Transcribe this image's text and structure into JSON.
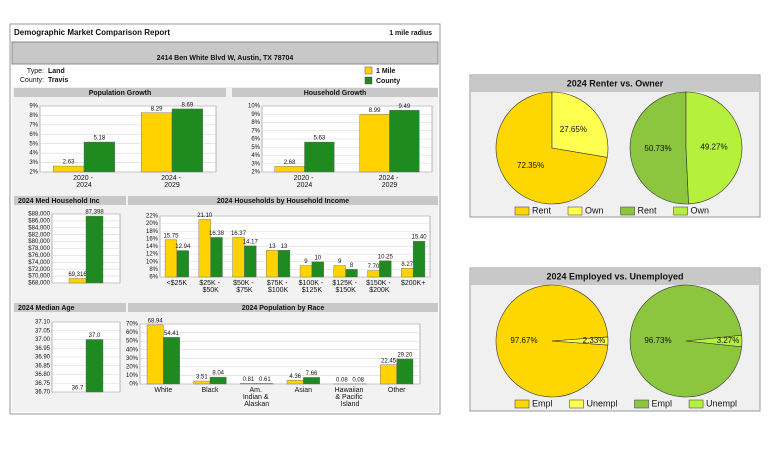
{
  "report": {
    "title": "Demographic Market Comparison Report",
    "radius": "1 mile radius",
    "address": "2414 Ben White Blvd W, Austin, TX 78704",
    "type_label": "Type:",
    "type_value": "Land",
    "county_label": "County:",
    "county_value": "Travis"
  },
  "chart_data": [
    {
      "type": "bar",
      "title": "Population Growth",
      "categories": [
        "2020 - 2024",
        "2024 - 2029"
      ],
      "series": [
        {
          "name": "1 Mile",
          "color": "#ffd200",
          "values": [
            2.63,
            8.29
          ],
          "value_labels": [
            "2.63",
            "8.29"
          ]
        },
        {
          "name": "County",
          "color": "#1f8a1f",
          "values": [
            5.18,
            8.69
          ],
          "value_labels": [
            "5.18",
            "8.69"
          ]
        }
      ],
      "ylim": [
        2,
        9
      ],
      "yticks": [
        {
          "value": 2,
          "label": "2%"
        },
        {
          "value": 3,
          "label": "3%"
        },
        {
          "value": 4,
          "label": "4%"
        },
        {
          "value": 5,
          "label": "5%"
        },
        {
          "value": 6,
          "label": "6%"
        },
        {
          "value": 7,
          "label": "7%"
        },
        {
          "value": 8,
          "label": "8%"
        },
        {
          "value": 9,
          "label": "9%"
        }
      ],
      "grid": true
    },
    {
      "type": "bar",
      "title": "Household Growth",
      "categories": [
        "2020 - 2024",
        "2024 - 2029"
      ],
      "series": [
        {
          "name": "1 Mile",
          "color": "#ffd200",
          "values": [
            2.68,
            8.99
          ],
          "value_labels": [
            "2.68",
            "8.99"
          ]
        },
        {
          "name": "County",
          "color": "#1f8a1f",
          "values": [
            5.63,
            9.49
          ],
          "value_labels": [
            "5.63",
            "9.49"
          ]
        }
      ],
      "ylim": [
        2,
        10
      ],
      "yticks": [
        {
          "value": 2,
          "label": "2%"
        },
        {
          "value": 3,
          "label": "3%"
        },
        {
          "value": 4,
          "label": "4%"
        },
        {
          "value": 5,
          "label": "5%"
        },
        {
          "value": 6,
          "label": "6%"
        },
        {
          "value": 7,
          "label": "7%"
        },
        {
          "value": 8,
          "label": "8%"
        },
        {
          "value": 9,
          "label": "9%"
        },
        {
          "value": 10,
          "label": "10%"
        }
      ],
      "grid": true
    },
    {
      "type": "bar",
      "title": "2024 Med Household Inc",
      "categories": [
        null
      ],
      "series": [
        {
          "name": "1 Mile",
          "color": "#ffd200",
          "values": [
            69316
          ],
          "value_labels": [
            "69,316"
          ]
        },
        {
          "name": "County",
          "color": "#1f8a1f",
          "values": [
            87398
          ],
          "value_labels": [
            "87,398"
          ]
        }
      ],
      "ylim": [
        68000,
        88000
      ],
      "yticks": [
        {
          "value": 68000,
          "label": "$68,000"
        },
        {
          "value": 70000,
          "label": "$70,000"
        },
        {
          "value": 72000,
          "label": "$72,000"
        },
        {
          "value": 74000,
          "label": "$74,000"
        },
        {
          "value": 76000,
          "label": "$76,000"
        },
        {
          "value": 78000,
          "label": "$78,000"
        },
        {
          "value": 80000,
          "label": "$80,000"
        },
        {
          "value": 82000,
          "label": "$82,000"
        },
        {
          "value": 84000,
          "label": "$84,000"
        },
        {
          "value": 86000,
          "label": "$86,000"
        },
        {
          "value": 88000,
          "label": "$88,000"
        }
      ],
      "grid": true
    },
    {
      "type": "bar",
      "title": "2024 Households by Household Income",
      "categories": [
        "<$25K",
        "$25K - $50K",
        "$50K - $75K",
        "$75K - $100K",
        "$100K - $125K",
        "$125K - $150K",
        "$150K - $200K",
        "$200K+"
      ],
      "series": [
        {
          "name": "1 Mile",
          "color": "#ffd200",
          "values": [
            15.75,
            21.1,
            16.37,
            13,
            9,
            9,
            7.7,
            8.27
          ],
          "value_labels": [
            "15.75",
            "21.10",
            "16.37",
            "13",
            "9",
            "9",
            "7.70",
            "8.27"
          ]
        },
        {
          "name": "County",
          "color": "#1f8a1f",
          "values": [
            12.94,
            16.38,
            14.17,
            13,
            10,
            8,
            10.25,
            15.4
          ],
          "value_labels": [
            "12.94",
            "16.38",
            "14.17",
            "13",
            "10",
            "8",
            "10.25",
            "15.40"
          ]
        }
      ],
      "ylim": [
        6,
        22
      ],
      "yticks": [
        {
          "value": 6,
          "label": "6%"
        },
        {
          "value": 8,
          "label": "8%"
        },
        {
          "value": 10,
          "label": "10%"
        },
        {
          "value": 12,
          "label": "12%"
        },
        {
          "value": 14,
          "label": "14%"
        },
        {
          "value": 16,
          "label": "16%"
        },
        {
          "value": 18,
          "label": "18%"
        },
        {
          "value": 20,
          "label": "20%"
        },
        {
          "value": 22,
          "label": "22%"
        }
      ],
      "grid": true
    },
    {
      "type": "bar",
      "title": "2024 Median Age",
      "categories": [
        null
      ],
      "series": [
        {
          "name": "1 Mile",
          "color": "#ffd200",
          "values": [
            36.7
          ],
          "value_labels": [
            "36.7"
          ]
        },
        {
          "name": "County",
          "color": "#1f8a1f",
          "values": [
            37
          ],
          "value_labels": [
            "37.0"
          ]
        }
      ],
      "ylim": [
        36.7,
        37.1
      ],
      "yticks": [
        {
          "value": 36.7,
          "label": "36.70"
        },
        {
          "value": 36.75,
          "label": "36.75"
        },
        {
          "value": 36.8,
          "label": "36.80"
        },
        {
          "value": 36.85,
          "label": "36.85"
        },
        {
          "value": 36.9,
          "label": "36.90"
        },
        {
          "value": 36.95,
          "label": "36.95"
        },
        {
          "value": 37,
          "label": "37.00"
        },
        {
          "value": 37.05,
          "label": "37.05"
        },
        {
          "value": 37.1,
          "label": "37.10"
        }
      ],
      "grid": true
    },
    {
      "type": "bar",
      "title": "2024 Population by Race",
      "categories": [
        "White",
        "Black",
        "Am. Indian & Alaskan",
        "Asian",
        "Hawaiian & Pacific Island",
        "Other"
      ],
      "series": [
        {
          "name": "1 Mile",
          "color": "#ffd200",
          "values": [
            68.94,
            3.51,
            0.81,
            4.36,
            0.08,
            22.45
          ],
          "value_labels": [
            "68.94",
            "3.51",
            "0.81",
            "4.36",
            "0.08",
            "22.45"
          ]
        },
        {
          "name": "County",
          "color": "#1f8a1f",
          "values": [
            54.41,
            8.04,
            0.61,
            7.66,
            0.08,
            29.2
          ],
          "value_labels": [
            "54.41",
            "8.04",
            "0.61",
            "7.66",
            "0.08",
            "29.20"
          ]
        }
      ],
      "ylim": [
        0,
        70
      ],
      "yticks": [
        {
          "value": 0,
          "label": "0%"
        },
        {
          "value": 10,
          "label": "10%"
        },
        {
          "value": 20,
          "label": "20%"
        },
        {
          "value": 30,
          "label": "30%"
        },
        {
          "value": 40,
          "label": "40%"
        },
        {
          "value": 50,
          "label": "50%"
        },
        {
          "value": 60,
          "label": "60%"
        },
        {
          "value": 70,
          "label": "70%"
        }
      ],
      "grid": true
    },
    {
      "type": "pie",
      "title": "2024 Renter vs. Owner",
      "pies": [
        {
          "labels": [
            "Rent",
            "Own"
          ],
          "colors": [
            "#ffd700",
            "#ffff50"
          ],
          "values": [
            72.35,
            27.65
          ],
          "value_labels": [
            "72.35%",
            "27.65%"
          ]
        },
        {
          "labels": [
            "Rent",
            "Own"
          ],
          "colors": [
            "#8cc63f",
            "#b4f03c"
          ],
          "values": [
            50.73,
            49.27
          ],
          "value_labels": [
            "50.73%",
            "49.27%"
          ]
        }
      ]
    },
    {
      "type": "pie",
      "title": "2024 Employed vs. Unemployed",
      "pies": [
        {
          "labels": [
            "Empl",
            "Unempl"
          ],
          "colors": [
            "#ffd700",
            "#ffff50"
          ],
          "values": [
            97.67,
            2.33
          ],
          "value_labels": [
            "97.67%",
            "2.33%"
          ]
        },
        {
          "labels": [
            "Empl",
            "Unempl"
          ],
          "colors": [
            "#8cc63f",
            "#b4f03c"
          ],
          "values": [
            96.73,
            3.27
          ],
          "value_labels": [
            "96.73%",
            "3.27%"
          ]
        }
      ]
    }
  ]
}
